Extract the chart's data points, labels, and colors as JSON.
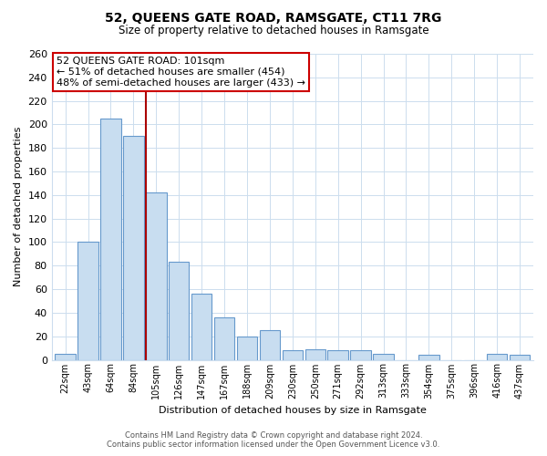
{
  "title": "52, QUEENS GATE ROAD, RAMSGATE, CT11 7RG",
  "subtitle": "Size of property relative to detached houses in Ramsgate",
  "xlabel": "Distribution of detached houses by size in Ramsgate",
  "ylabel": "Number of detached properties",
  "bar_labels": [
    "22sqm",
    "43sqm",
    "64sqm",
    "84sqm",
    "105sqm",
    "126sqm",
    "147sqm",
    "167sqm",
    "188sqm",
    "209sqm",
    "230sqm",
    "250sqm",
    "271sqm",
    "292sqm",
    "313sqm",
    "333sqm",
    "354sqm",
    "375sqm",
    "396sqm",
    "416sqm",
    "437sqm"
  ],
  "bar_values": [
    5,
    100,
    205,
    190,
    142,
    83,
    56,
    36,
    20,
    25,
    8,
    9,
    8,
    8,
    5,
    0,
    4,
    0,
    0,
    5,
    4
  ],
  "bar_color": "#c8ddf0",
  "bar_edge_color": "#6699cc",
  "highlight_index": 4,
  "highlight_line_color": "#aa0000",
  "ylim": [
    0,
    260
  ],
  "yticks": [
    0,
    20,
    40,
    60,
    80,
    100,
    120,
    140,
    160,
    180,
    200,
    220,
    240,
    260
  ],
  "annotation_title": "52 QUEENS GATE ROAD: 101sqm",
  "annotation_line1": "← 51% of detached houses are smaller (454)",
  "annotation_line2": "48% of semi-detached houses are larger (433) →",
  "annotation_box_color": "#ffffff",
  "annotation_box_edge": "#cc0000",
  "footer_line1": "Contains HM Land Registry data © Crown copyright and database right 2024.",
  "footer_line2": "Contains public sector information licensed under the Open Government Licence v3.0.",
  "background_color": "#ffffff",
  "grid_color": "#ccddee"
}
